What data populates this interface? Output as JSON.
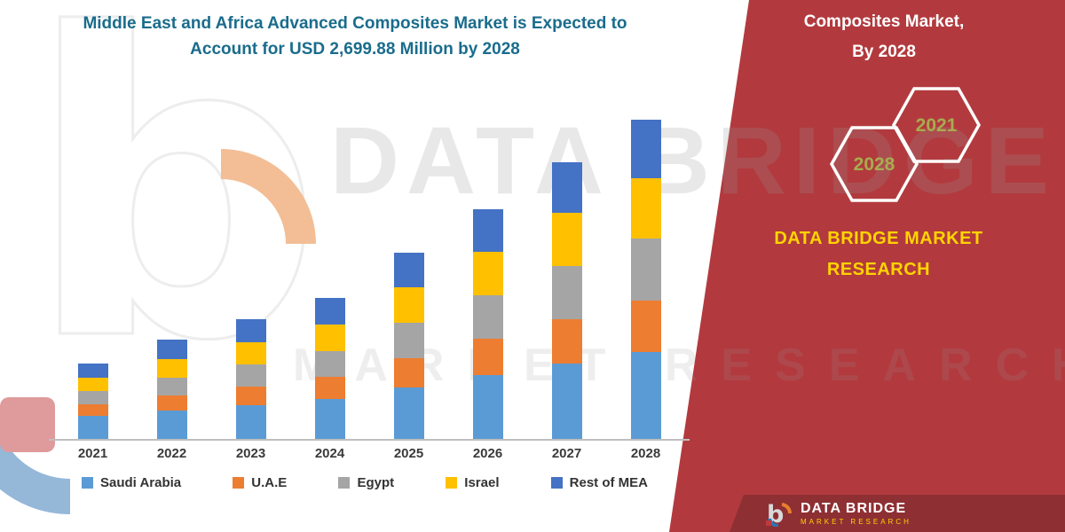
{
  "header": {
    "title": "Middle East and Africa Advanced Composites Market is Expected to Account for USD 2,699.88 Million by 2028",
    "color": "#1A6C8C"
  },
  "chart_data": {
    "type": "bar",
    "stacked": true,
    "title": "Middle East and Africa Advanced Composites Market is Expected to Account for USD 2,699.88 Million by 2028",
    "unit": "USD Million",
    "xlabel": "",
    "ylabel": "",
    "ylim": [
      0,
      2800
    ],
    "grid": false,
    "legend_position": "bottom",
    "categories": [
      "2021",
      "2022",
      "2023",
      "2024",
      "2025",
      "2026",
      "2027",
      "2028"
    ],
    "series": [
      {
        "name": "Saudi Arabia",
        "color": "#5B9BD5",
        "values": [
          195,
          240,
          285,
          337,
          435,
          540,
          637,
          735
        ]
      },
      {
        "name": "U.A.E",
        "color": "#ED7D31",
        "values": [
          98,
          128,
          158,
          187,
          248,
          307,
          375,
          435
        ]
      },
      {
        "name": "Egypt",
        "color": "#A5A5A5",
        "values": [
          112,
          150,
          187,
          218,
          300,
          367,
          450,
          525
        ]
      },
      {
        "name": "Israel",
        "color": "#FFC000",
        "values": [
          112,
          157,
          187,
          225,
          300,
          367,
          450,
          510
        ]
      },
      {
        "name": "Rest of MEA",
        "color": "#4472C4",
        "values": [
          120,
          165,
          195,
          225,
          293,
          360,
          428,
          494.88
        ]
      }
    ],
    "total_2028": "USD 2,699.88 Million"
  },
  "right_panel": {
    "bg_color": "#B23A3E",
    "title_line1": "Composites Market,",
    "title_line2": "By 2028",
    "hexagon_years": [
      "2028",
      "2021"
    ],
    "hexagon_text_color": "#A7AC4F",
    "brand_line1": "DATA BRIDGE MARKET",
    "brand_line2": "RESEARCH",
    "brand_color": "#FFD400"
  },
  "footer": {
    "bg_color": "#8E2F33",
    "brand": "DATA BRIDGE",
    "sub": "MARKET RESEARCH"
  },
  "watermark": {
    "line1": "DATA BRIDGE",
    "line2": "MARKET RESEARCH"
  }
}
